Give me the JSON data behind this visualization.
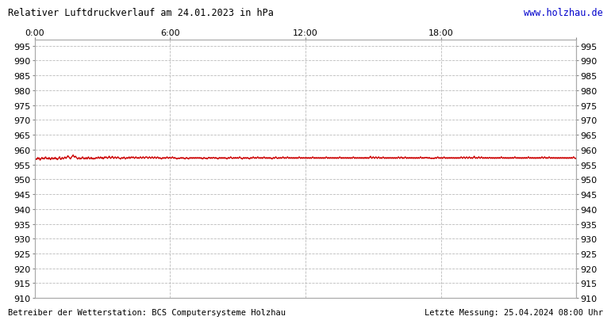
{
  "title": "Relativer Luftdruckverlauf am 24.01.2023 in hPa",
  "url_text": "www.holzhau.de",
  "footer_left": "Betreiber der Wetterstation: BCS Computersysteme Holzhau",
  "footer_right": "Letzte Messung: 25.04.2024 08:00 Uhr",
  "ylim": [
    910,
    997
  ],
  "yticks": [
    910,
    915,
    920,
    925,
    930,
    935,
    940,
    945,
    950,
    955,
    960,
    965,
    970,
    975,
    980,
    985,
    990,
    995
  ],
  "xticks_positions": [
    0,
    360,
    720,
    1080,
    1440
  ],
  "xticks_labels": [
    "0:00",
    "6:00",
    "12:00",
    "18:00",
    ""
  ],
  "line_color": "#cc0000",
  "bg_color": "#ffffff",
  "grid_color": "#bbbbbb",
  "title_color": "#000000",
  "url_color": "#0000cc",
  "footer_color": "#000000",
  "pressure_base": 957.0,
  "pressure_data": [
    957.2,
    957.0,
    956.8,
    956.6,
    957.0,
    956.8,
    957.2,
    957.4,
    956.8,
    957.0,
    957.2,
    956.6,
    956.4,
    956.8,
    957.0,
    957.2,
    957.4,
    957.0,
    956.8,
    957.2,
    957.0,
    956.8,
    957.2,
    957.4,
    957.6,
    957.2,
    957.0,
    956.8,
    957.2,
    957.0,
    956.8,
    957.2,
    957.4,
    957.0,
    956.8,
    956.6,
    957.0,
    957.2,
    957.4,
    957.0,
    956.8,
    957.2,
    957.0,
    956.8,
    957.2,
    957.4,
    957.0,
    956.8,
    957.2,
    956.8,
    956.6,
    956.8,
    957.0,
    957.2,
    957.4,
    957.6,
    957.0,
    956.8,
    956.6,
    957.0,
    957.2,
    957.4,
    957.0,
    956.8,
    957.0,
    957.2,
    957.4,
    957.6,
    957.2,
    957.0,
    957.2,
    957.4,
    957.6,
    958.0,
    957.8,
    957.6,
    957.4,
    957.2,
    957.0,
    956.8,
    957.2,
    957.4,
    957.6,
    957.8,
    958.0,
    958.2,
    957.8,
    957.6,
    957.4,
    957.6,
    957.8,
    957.6,
    957.4,
    957.2,
    957.0,
    956.8,
    957.0,
    957.2,
    957.4,
    957.0,
    956.8,
    957.2,
    957.0,
    956.8,
    957.2,
    957.4,
    957.6,
    957.2,
    957.0,
    956.8,
    957.2,
    957.0,
    956.8,
    957.2,
    957.4,
    957.0,
    956.8,
    957.2,
    957.4,
    957.6,
    957.2,
    957.0,
    956.8,
    957.0,
    957.2,
    957.4,
    957.0,
    956.8,
    957.2,
    957.0,
    956.8,
    957.0,
    957.2,
    956.8,
    957.0,
    957.2,
    957.4,
    957.2,
    957.0,
    957.2,
    957.4,
    957.6,
    957.2,
    957.0,
    957.2,
    957.4,
    957.6,
    957.2,
    957.0,
    957.2,
    957.4,
    957.0,
    956.8,
    957.2,
    957.4,
    957.6,
    957.2,
    957.4,
    957.6,
    957.4,
    957.2,
    957.0,
    957.2,
    957.4,
    957.6,
    957.8,
    957.4,
    957.2,
    957.0,
    957.2,
    957.4,
    957.6,
    957.8,
    957.4,
    957.2,
    957.0,
    957.2,
    957.4,
    957.6,
    957.4,
    957.2,
    957.0,
    957.2,
    957.4,
    957.6,
    957.4,
    957.2,
    957.0,
    957.2,
    957.0,
    956.8,
    957.0,
    957.2,
    957.4,
    957.2,
    957.0,
    957.2,
    957.4,
    957.6,
    957.2,
    957.0,
    956.8,
    957.0,
    957.2,
    957.4,
    957.2,
    957.0,
    957.2,
    957.4,
    957.6,
    957.2,
    957.0,
    957.2,
    957.4,
    957.6,
    957.4,
    957.2,
    957.4,
    957.6,
    957.4,
    957.2,
    957.0,
    957.2,
    957.4,
    957.6,
    957.4,
    957.2,
    957.0,
    957.2,
    957.4,
    957.2,
    957.0,
    957.2,
    957.4,
    957.6,
    957.4,
    957.2,
    957.0,
    957.2,
    957.4,
    957.6,
    957.4,
    957.2,
    957.0,
    957.2,
    957.4,
    957.6,
    957.4,
    957.6,
    957.4,
    957.2,
    957.0,
    957.2,
    957.4,
    957.6,
    957.4,
    957.2,
    957.0,
    957.2,
    957.4,
    957.6,
    957.4,
    957.2,
    957.0,
    957.2,
    957.4,
    957.6,
    957.4,
    957.2,
    957.0,
    957.2,
    957.4,
    957.6,
    957.4,
    957.2,
    957.0,
    957.2,
    957.4,
    957.0,
    957.2,
    957.0,
    956.8,
    957.0,
    957.2,
    957.4,
    957.2,
    957.0,
    957.2,
    957.4,
    957.2,
    957.0,
    957.2,
    957.4,
    957.6,
    957.4,
    957.2,
    957.0,
    957.2,
    957.4,
    957.2,
    957.4,
    957.2,
    957.0,
    957.2,
    957.4,
    957.6,
    957.4,
    957.2,
    957.0,
    957.2,
    957.4,
    957.2,
    957.0,
    957.2,
    957.0,
    956.8,
    957.0,
    957.2,
    957.0,
    957.2,
    957.0,
    957.2,
    957.0,
    957.2,
    957.4,
    957.2,
    957.0,
    957.2,
    957.4,
    957.2,
    957.0,
    957.2,
    957.0,
    956.8,
    957.0,
    957.2,
    957.4,
    957.2,
    957.0,
    957.2,
    957.0,
    956.8,
    957.0,
    957.2,
    957.4,
    957.2,
    957.0,
    957.2,
    957.4,
    957.2,
    957.0,
    957.2,
    957.4,
    957.2,
    957.0,
    957.2,
    957.4,
    957.2,
    957.0,
    957.2,
    957.4,
    957.2,
    957.0,
    957.2,
    957.4,
    957.2,
    957.0,
    957.2,
    957.4,
    957.0,
    957.2,
    957.0,
    956.8,
    957.0,
    957.2,
    957.4,
    957.2,
    957.0,
    957.2,
    957.0,
    957.2,
    957.0,
    956.8,
    957.0,
    957.2,
    957.4,
    957.2,
    957.4,
    957.2,
    957.0,
    957.2,
    957.4,
    957.2,
    957.0,
    957.2,
    957.4,
    957.2,
    957.4,
    957.2,
    957.0,
    957.2,
    957.4,
    957.2,
    957.0,
    957.2,
    957.0,
    956.8,
    957.0,
    957.2,
    957.4,
    957.2,
    957.0,
    957.2,
    957.4,
    957.2,
    957.0,
    957.2,
    957.4,
    957.2,
    957.0,
    957.2,
    957.4,
    957.2,
    957.0,
    957.2,
    957.0,
    956.8,
    957.0,
    957.2,
    957.4,
    957.2,
    957.0,
    957.2,
    957.4,
    957.6,
    957.4,
    957.2,
    957.0,
    957.2,
    957.0,
    957.2,
    957.4,
    957.2,
    957.0,
    957.2,
    957.4,
    957.2,
    957.0,
    957.2,
    957.4,
    957.2,
    957.0,
    957.2,
    957.4,
    957.6,
    957.4,
    957.2,
    957.0,
    957.2,
    957.0,
    956.8,
    957.0,
    957.2,
    957.4,
    957.2,
    957.0,
    957.2,
    957.4,
    957.2,
    957.0,
    957.2,
    957.4,
    957.2,
    957.0,
    957.2,
    957.0,
    956.8,
    957.0,
    957.2,
    957.4,
    957.2,
    957.0,
    957.2,
    957.4,
    957.6,
    957.4,
    957.2,
    957.0,
    957.2,
    957.4,
    957.2,
    957.0,
    957.2,
    957.4,
    957.6,
    957.4,
    957.2,
    957.0,
    957.2,
    957.4,
    957.2,
    957.0,
    957.2,
    957.4,
    957.2,
    957.0,
    957.2,
    957.4,
    957.6,
    957.4,
    957.2,
    957.0,
    957.2,
    957.4,
    957.2,
    957.0,
    957.2,
    957.4,
    957.2,
    957.0,
    957.2,
    957.4,
    957.2,
    957.0,
    957.2,
    957.0,
    956.8,
    957.0,
    957.2,
    957.4,
    957.2,
    957.0,
    957.2,
    957.4,
    957.6,
    957.4,
    957.2,
    957.0,
    957.2,
    957.0,
    957.2,
    957.4,
    957.2,
    957.0,
    957.2,
    957.4,
    957.2,
    957.0,
    957.2,
    957.4,
    957.6,
    957.4,
    957.2,
    957.0,
    957.2,
    957.4,
    957.2,
    957.0,
    957.2,
    957.4,
    957.6,
    957.4,
    957.2,
    957.0,
    957.2,
    957.4,
    957.2,
    957.0,
    957.2,
    957.4,
    957.2,
    957.0,
    957.2,
    957.4,
    957.2,
    957.0,
    957.2,
    957.4,
    957.2,
    957.0,
    957.2,
    957.4,
    957.2,
    957.0,
    957.2,
    957.4,
    957.6,
    957.4,
    957.2,
    957.0,
    957.2,
    957.4,
    957.2,
    957.0,
    957.2,
    957.4,
    957.2,
    957.0,
    957.2,
    957.4,
    957.2,
    957.0,
    957.2,
    957.4,
    957.2,
    957.0,
    957.2,
    957.4,
    957.2,
    957.0,
    957.2,
    957.4,
    957.2,
    957.0,
    957.2,
    957.4,
    957.6,
    957.4,
    957.2,
    957.0,
    957.2,
    957.4,
    957.2,
    957.0,
    957.2,
    957.4,
    957.2,
    957.0,
    957.2,
    957.4,
    957.2,
    957.0,
    957.2,
    957.4,
    957.2,
    957.0,
    957.2,
    957.4,
    957.2,
    957.0,
    957.2,
    957.4,
    957.2,
    957.0,
    957.2,
    957.4,
    957.6,
    957.4,
    957.2,
    957.0,
    957.2,
    957.4,
    957.2,
    957.0,
    957.2,
    957.4,
    957.2,
    957.0,
    957.2,
    957.4,
    957.2,
    957.0,
    957.2,
    957.4,
    957.2,
    957.0,
    957.2,
    957.4,
    957.2,
    957.0,
    957.2,
    957.4,
    957.2,
    957.0,
    957.2,
    957.4,
    957.6,
    957.4,
    957.2,
    957.0,
    957.2,
    957.4,
    957.2,
    957.0,
    957.2,
    957.4,
    957.2,
    957.0,
    957.2,
    957.4,
    957.2,
    957.0,
    957.2,
    957.4,
    957.2,
    957.0,
    957.2,
    957.4,
    957.2,
    957.0,
    957.2,
    957.4,
    957.2,
    957.0,
    957.2,
    957.4,
    957.6,
    957.4,
    957.2,
    957.0,
    957.2,
    957.4,
    957.2,
    957.0,
    957.2,
    957.4,
    957.2,
    957.0,
    957.2,
    957.4,
    957.2,
    957.0,
    957.2,
    957.4,
    957.2,
    957.0,
    957.2,
    957.4,
    957.2,
    957.0,
    957.2,
    957.4,
    957.2,
    957.0,
    957.4,
    957.2,
    957.0,
    957.2,
    957.4,
    957.2,
    957.0,
    957.2,
    957.4,
    957.6,
    957.8,
    957.4,
    957.2,
    957.0,
    957.2,
    957.4,
    957.6,
    957.4,
    957.2,
    957.0,
    957.2,
    957.4,
    957.6,
    957.4,
    957.2,
    957.0,
    957.2,
    957.4,
    957.6,
    957.4,
    957.2,
    957.0,
    957.2,
    957.4,
    957.2,
    957.0,
    957.2,
    957.4,
    957.6,
    957.4,
    957.2,
    957.0,
    957.2,
    957.4,
    957.2,
    957.0,
    957.2,
    957.4,
    957.2,
    957.0,
    957.2,
    957.4,
    957.2,
    957.0,
    957.2,
    957.4,
    957.2,
    957.0,
    957.2,
    957.4,
    957.2,
    957.0,
    957.2,
    957.4,
    957.2,
    957.0,
    957.2,
    957.4,
    957.2,
    957.0,
    957.2,
    957.4,
    957.6,
    957.4,
    957.2,
    957.0,
    957.2,
    957.4,
    957.6,
    957.4,
    957.2,
    957.0,
    957.4,
    957.2,
    957.0,
    957.2,
    957.4,
    957.6,
    957.4,
    957.2,
    957.0,
    957.2,
    957.4,
    957.2,
    957.0,
    957.2,
    957.4,
    957.2,
    957.0,
    957.2,
    957.4,
    957.2,
    957.0,
    957.2,
    957.4,
    957.2,
    957.0,
    957.2,
    957.4,
    957.2,
    957.0,
    957.2,
    957.4,
    957.2,
    957.0,
    957.2,
    957.4,
    957.2,
    957.0,
    957.2,
    957.4,
    957.6,
    957.4,
    957.2,
    957.0,
    957.2,
    957.4,
    957.2,
    957.0,
    957.2,
    957.4,
    957.2,
    957.4,
    957.2,
    957.4,
    957.2,
    957.4,
    957.2,
    957.0,
    957.2,
    957.4,
    957.2,
    957.0,
    957.2,
    957.0,
    957.2,
    957.0,
    957.2,
    957.0,
    957.2,
    957.0,
    957.2,
    957.0,
    957.2,
    957.4,
    957.2,
    957.0,
    957.2,
    957.4,
    957.6,
    957.4,
    957.2,
    957.0,
    957.2,
    957.4,
    957.2,
    957.0,
    957.2,
    957.4,
    957.2,
    957.0,
    957.2,
    957.4,
    957.6,
    957.4,
    957.2,
    957.0,
    957.2,
    957.4,
    957.2,
    957.0,
    957.2,
    957.4,
    957.2,
    957.0,
    957.2,
    957.4,
    957.2,
    957.0,
    957.2,
    957.4,
    957.2,
    957.0,
    957.2,
    957.4,
    957.2,
    957.0,
    957.2,
    957.4,
    957.2,
    957.0,
    957.2,
    957.4,
    957.2,
    957.0,
    957.2,
    957.4,
    957.2,
    957.0,
    957.2,
    957.4,
    957.6,
    957.4,
    957.2,
    957.0,
    957.2,
    957.4,
    957.6,
    957.4,
    957.2,
    957.0,
    957.2,
    957.4,
    957.6,
    957.4,
    957.2,
    957.0,
    957.2,
    957.4,
    957.6,
    957.4,
    957.2,
    957.0,
    957.2,
    957.4,
    957.2,
    957.0,
    957.2,
    957.4,
    957.6,
    957.8,
    957.4,
    957.2,
    957.0,
    957.2,
    957.4,
    957.2,
    957.0,
    957.2,
    957.4,
    957.6,
    957.4,
    957.2,
    957.0,
    957.2,
    957.4,
    957.6,
    957.4,
    957.2,
    957.0,
    957.2,
    957.4,
    957.2,
    957.0,
    957.2,
    957.4,
    957.2,
    957.0,
    957.2,
    957.4,
    957.2,
    957.0,
    957.2,
    957.4,
    957.2,
    957.4,
    957.2,
    957.0,
    957.2,
    957.4,
    957.2,
    957.0,
    957.2,
    957.4,
    957.2,
    957.0,
    957.2,
    957.4,
    957.2,
    957.0,
    957.2,
    957.4,
    957.2,
    957.0,
    957.2,
    957.4,
    957.2,
    957.0,
    957.2,
    957.4,
    957.6,
    957.4,
    957.2,
    957.0,
    957.2,
    957.4,
    957.2,
    957.0,
    957.2,
    957.4,
    957.2,
    957.0,
    957.2,
    957.4,
    957.2,
    957.0,
    957.2,
    957.4,
    957.2,
    957.0,
    957.2,
    957.4,
    957.2,
    957.0,
    957.2,
    957.4,
    957.2,
    957.0,
    957.2,
    957.4,
    957.6,
    957.4,
    957.2,
    957.0,
    957.2,
    957.4,
    957.2,
    957.0,
    957.2,
    957.4,
    957.2,
    957.0,
    957.2,
    957.4,
    957.2,
    957.0,
    957.2,
    957.4,
    957.2,
    957.0,
    957.2,
    957.4,
    957.2,
    957.0,
    957.2,
    957.4,
    957.2,
    957.0,
    957.2,
    957.4,
    957.6,
    957.4,
    957.2,
    957.0,
    957.2,
    957.4,
    957.2,
    957.0,
    957.2,
    957.4,
    957.2,
    957.0,
    957.2,
    957.4,
    957.2,
    957.0,
    957.2,
    957.4,
    957.2,
    957.0,
    957.2,
    957.4,
    957.2,
    957.0,
    957.2,
    957.4,
    957.2,
    957.0,
    957.2,
    957.4,
    957.6,
    957.4,
    957.2,
    957.0,
    957.2,
    957.4,
    957.6,
    957.4,
    957.2,
    957.0,
    957.2,
    957.4,
    957.2,
    957.0,
    957.2,
    957.4,
    957.6,
    957.4,
    957.2,
    957.0,
    957.2,
    957.4,
    957.2,
    957.0,
    957.2,
    957.4,
    957.2,
    957.0,
    957.2,
    957.4,
    957.2,
    957.0,
    957.2,
    957.4,
    957.2,
    957.0,
    957.2,
    957.4,
    957.2,
    957.0,
    957.2,
    957.4,
    957.2,
    957.0,
    957.2,
    957.4,
    957.2,
    957.0,
    957.2,
    957.4,
    957.2,
    957.0,
    957.2,
    957.4,
    957.2,
    957.0,
    957.2,
    957.4,
    957.2,
    957.0,
    957.2,
    957.4,
    957.2,
    957.0,
    957.2,
    957.4,
    957.2,
    957.0,
    957.2,
    957.4,
    957.6,
    957.4,
    957.2,
    957.0,
    957.2,
    957.0
  ]
}
